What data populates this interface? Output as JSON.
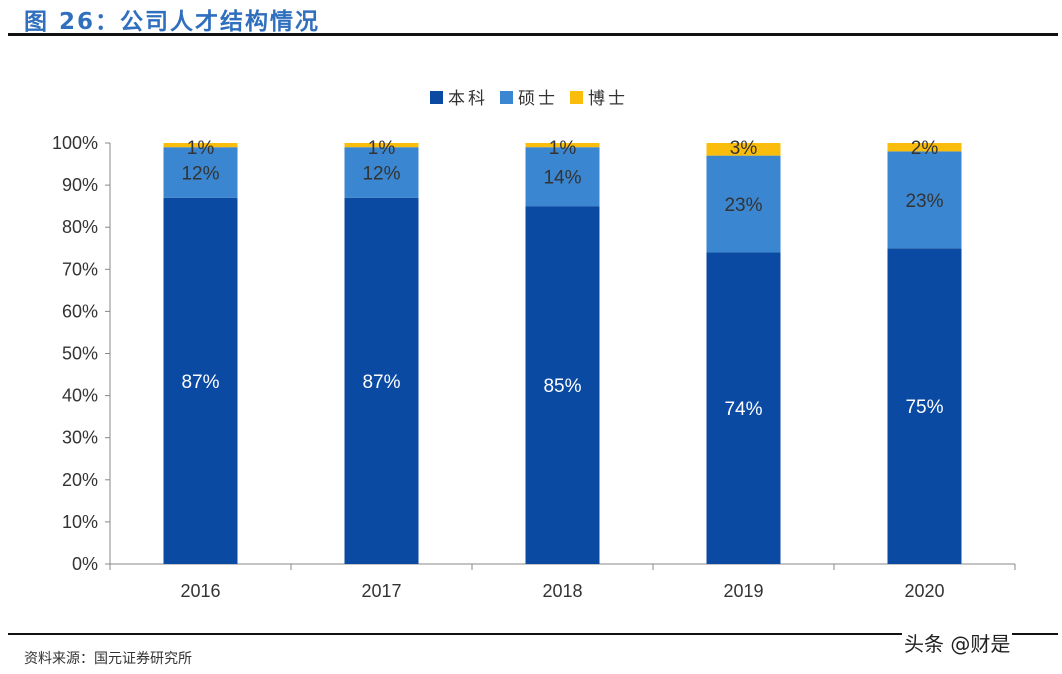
{
  "title": "图 26：公司人才结构情况",
  "source": "资料来源：国元证券研究所",
  "watermark": "头条 @财是",
  "chart_data": {
    "type": "bar",
    "stacked": true,
    "percent": true,
    "categories": [
      "2016",
      "2017",
      "2018",
      "2019",
      "2020"
    ],
    "series": [
      {
        "name": "本科",
        "color": "#0b4aa2",
        "values": [
          87,
          87,
          85,
          74,
          75
        ]
      },
      {
        "name": "硕士",
        "color": "#3b86d0",
        "values": [
          12,
          12,
          14,
          23,
          23
        ]
      },
      {
        "name": "博士",
        "color": "#fbbd0b",
        "values": [
          1,
          1,
          1,
          3,
          2
        ]
      }
    ],
    "ylim": [
      0,
      100
    ],
    "yticks": [
      "0%",
      "10%",
      "20%",
      "30%",
      "40%",
      "50%",
      "60%",
      "70%",
      "80%",
      "90%",
      "100%"
    ],
    "legend": "top",
    "grid": false,
    "data_labels": true
  }
}
